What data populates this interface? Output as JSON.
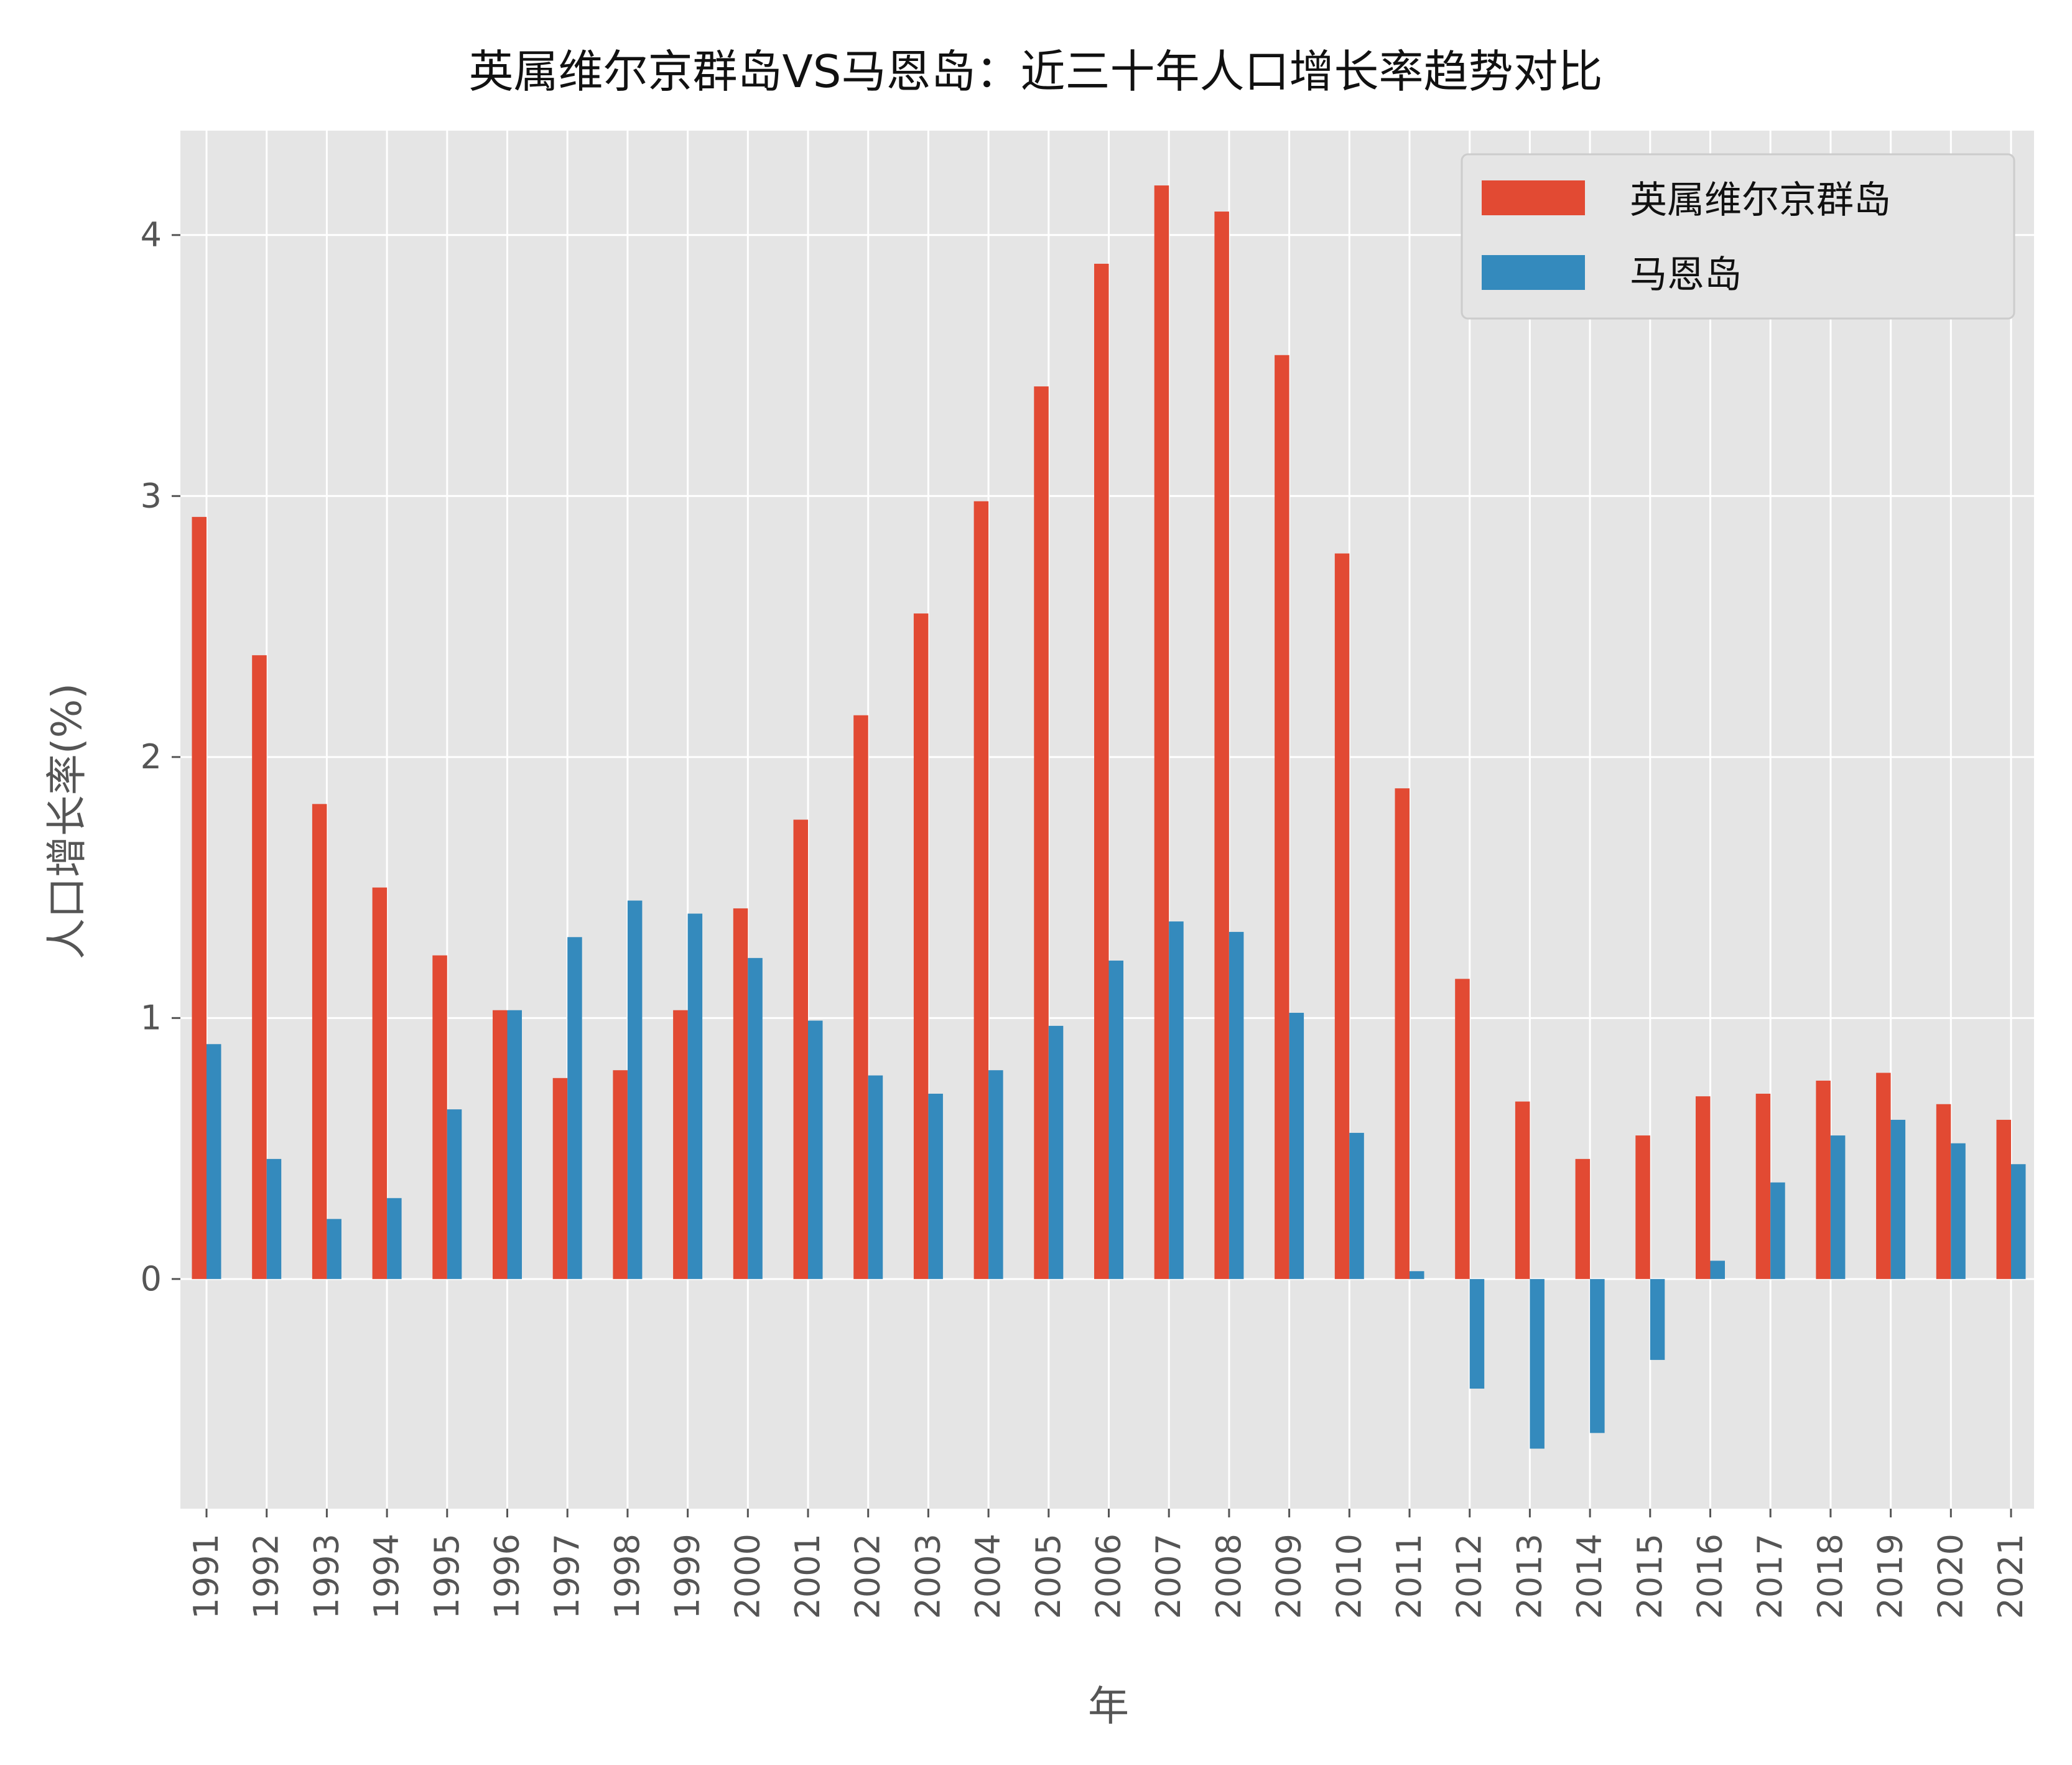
{
  "chart_data": {
    "type": "bar",
    "title": "英属维尔京群岛VS马恩岛：近三十年人口增长率趋势对比",
    "xlabel": "年",
    "ylabel": "人口增长率(%)",
    "categories": [
      "1991",
      "1992",
      "1993",
      "1994",
      "1995",
      "1996",
      "1997",
      "1998",
      "1999",
      "2000",
      "2001",
      "2002",
      "2003",
      "2004",
      "2005",
      "2006",
      "2007",
      "2008",
      "2009",
      "2010",
      "2011",
      "2012",
      "2013",
      "2014",
      "2015",
      "2016",
      "2017",
      "2018",
      "2019",
      "2020",
      "2021"
    ],
    "series": [
      {
        "name": "英属维尔京群岛",
        "color": "#E24A33",
        "values": [
          2.92,
          2.39,
          1.82,
          1.5,
          1.24,
          1.03,
          0.77,
          0.8,
          1.03,
          1.42,
          1.76,
          2.16,
          2.55,
          2.98,
          3.42,
          3.89,
          4.19,
          4.09,
          3.54,
          2.78,
          1.88,
          1.15,
          0.68,
          0.46,
          0.55,
          0.7,
          0.71,
          0.76,
          0.79,
          0.67,
          0.61
        ]
      },
      {
        "name": "马恩岛",
        "color": "#348ABD",
        "values": [
          0.9,
          0.46,
          0.23,
          0.31,
          0.65,
          1.03,
          1.31,
          1.45,
          1.4,
          1.23,
          0.99,
          0.78,
          0.71,
          0.8,
          0.97,
          1.22,
          1.37,
          1.33,
          1.02,
          0.56,
          0.03,
          -0.42,
          -0.65,
          -0.59,
          -0.31,
          0.07,
          0.37,
          0.55,
          0.61,
          0.52,
          0.44
        ]
      }
    ],
    "yticks": [
      0,
      1,
      2,
      3,
      4
    ],
    "ylim": [
      -0.88,
      4.4
    ],
    "grid": true,
    "legend_position": "top-right",
    "background_color": "#E5E5E5",
    "grid_color": "#FFFFFF",
    "tick_color": "#555555"
  }
}
